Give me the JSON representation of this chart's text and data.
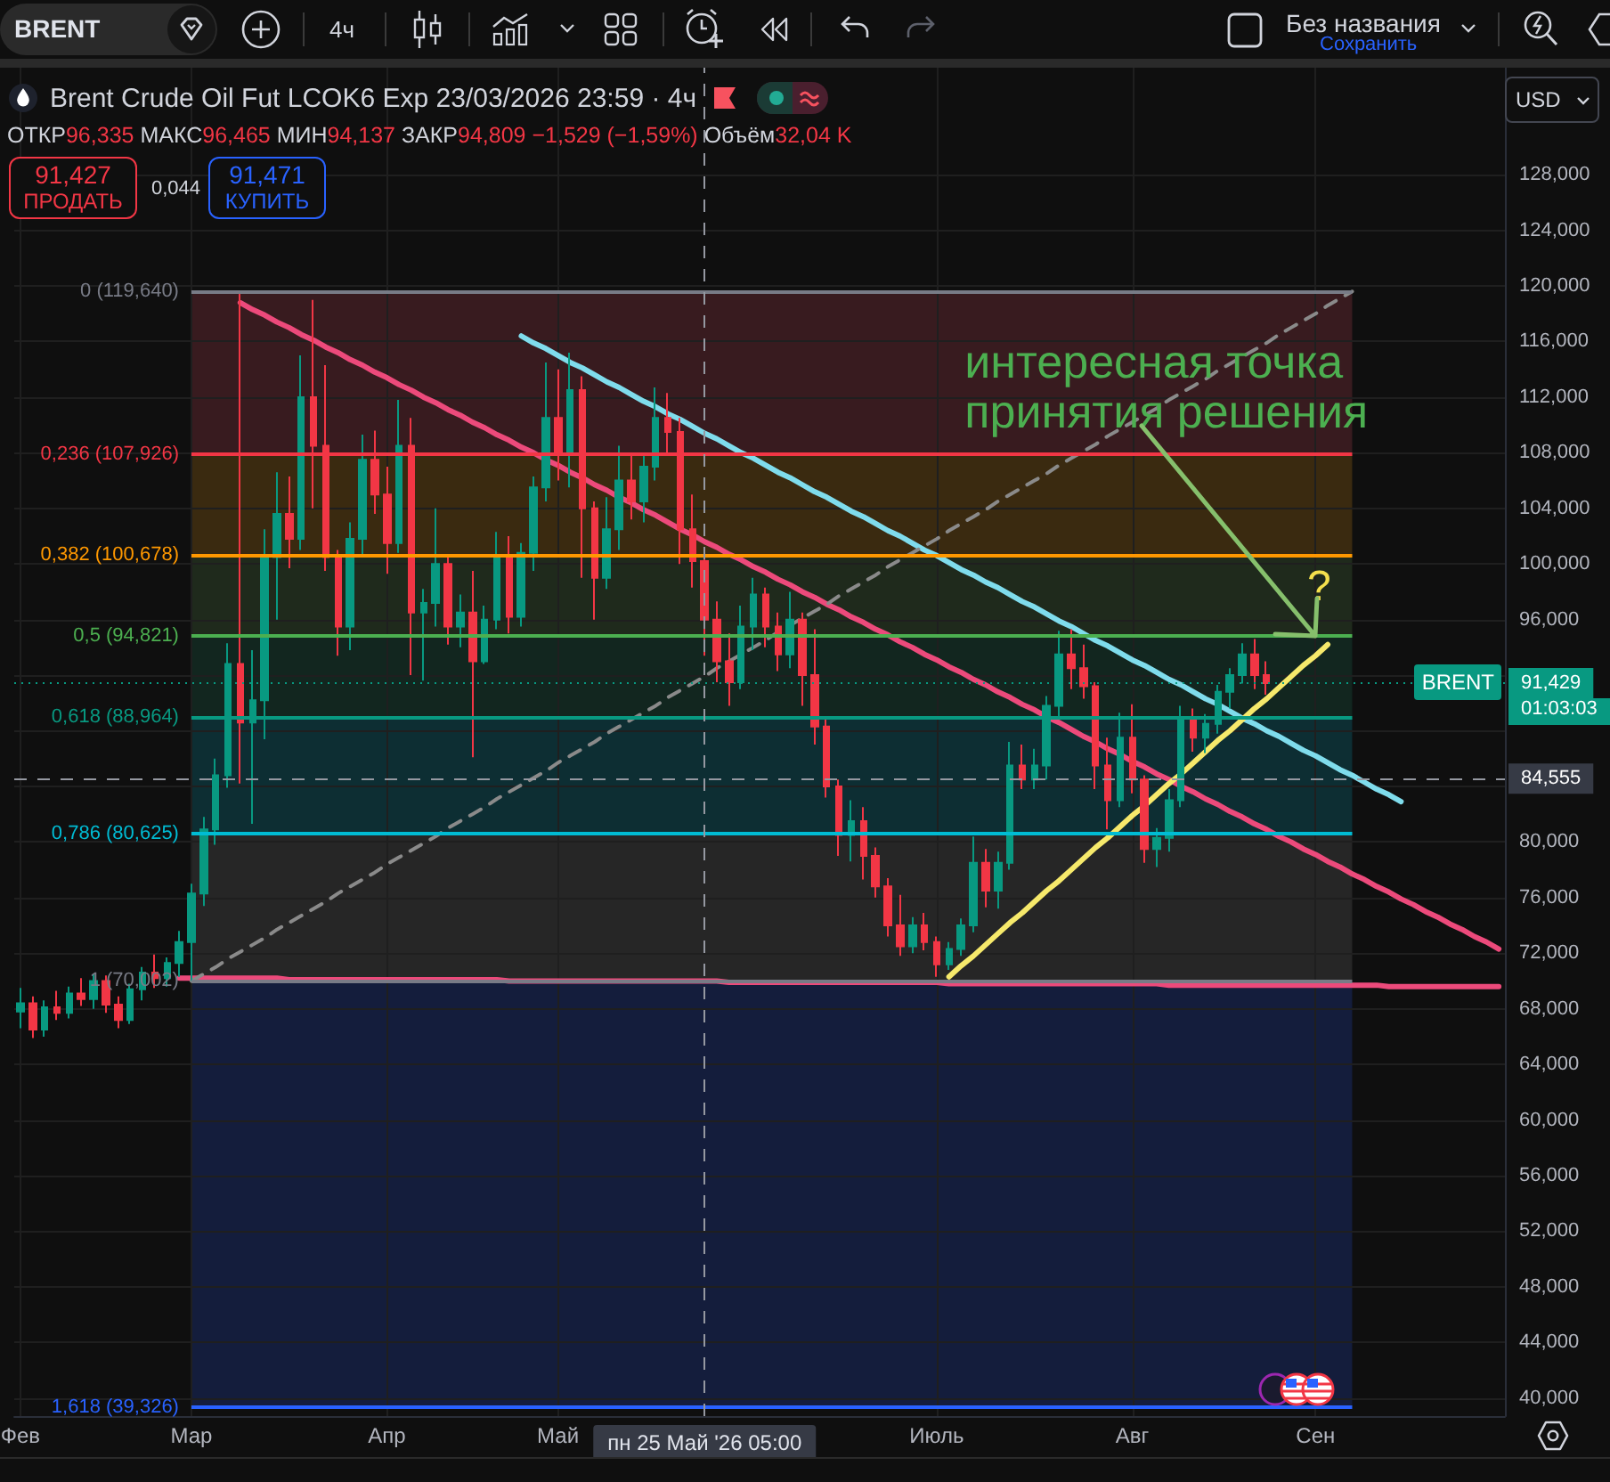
{
  "chart_data": {
    "type": "candlestick",
    "title": "Brent Crude Oil Fut LCOK6 Exp 23/03/2026 23:59 · 4ч",
    "subtitle": "ОТКР96,335 МАКС96,465 МИН94,137 ЗАКР94,809 −1,529 (−1,59%) Объём32,04 K",
    "categories": [
      "Фев",
      null,
      null,
      null,
      null,
      null,
      null,
      null,
      null,
      null,
      null,
      null,
      null,
      null,
      "Мар",
      null,
      null,
      null,
      null,
      null,
      null,
      null,
      null,
      null,
      null,
      null,
      null,
      null,
      null,
      null,
      "Апр",
      null,
      null,
      null,
      null,
      null,
      null,
      null,
      null,
      null,
      null,
      null,
      null,
      null,
      "Май",
      null,
      null,
      null,
      null,
      null,
      null,
      null,
      null,
      null,
      null,
      null,
      "пн 25 Май '26 05:00",
      null,
      null,
      null,
      null,
      null,
      null,
      null,
      null,
      null,
      null,
      null,
      null,
      null,
      null,
      null,
      null,
      null,
      null,
      "Июль",
      null,
      null,
      null,
      null,
      null,
      null,
      null,
      null,
      null,
      null,
      null,
      null,
      null,
      null,
      null,
      "Авг",
      null,
      null,
      null,
      null,
      null,
      null,
      null,
      null,
      null,
      null,
      null,
      null,
      null,
      null,
      "Сен",
      null,
      null,
      null,
      null,
      null,
      null,
      null,
      null,
      null,
      null,
      null,
      null,
      null,
      null,
      null
    ],
    "ohlc": [
      [
        67.8,
        69.5,
        66.6,
        68.4
      ],
      [
        68.4,
        68.9,
        65.9,
        66.5
      ],
      [
        66.5,
        68.6,
        66.0,
        68.1
      ],
      [
        68.1,
        69.3,
        67.2,
        67.7
      ],
      [
        67.7,
        69.6,
        67.3,
        69.1
      ],
      [
        69.1,
        70.2,
        68.2,
        68.7
      ],
      [
        68.7,
        70.5,
        68.0,
        70.0
      ],
      [
        70.0,
        70.4,
        67.7,
        68.3
      ],
      [
        68.3,
        68.9,
        66.6,
        67.2
      ],
      [
        67.2,
        69.8,
        66.9,
        69.4
      ],
      [
        69.4,
        71.0,
        68.6,
        70.6
      ],
      [
        70.6,
        71.9,
        69.5,
        70.2
      ],
      [
        70.2,
        71.7,
        69.6,
        71.3
      ],
      [
        71.3,
        73.6,
        70.3,
        72.8
      ],
      [
        72.8,
        77.0,
        70.0,
        76.3
      ],
      [
        76.3,
        81.8,
        75.4,
        80.9
      ],
      [
        80.9,
        86.0,
        79.8,
        84.8
      ],
      [
        84.8,
        94.3,
        83.9,
        92.8
      ],
      [
        92.8,
        119.6,
        84.2,
        88.6
      ],
      [
        88.6,
        93.8,
        81.3,
        90.2
      ],
      [
        90.2,
        102.5,
        87.4,
        100.5
      ],
      [
        100.5,
        106.6,
        96.0,
        103.6
      ],
      [
        103.6,
        106.3,
        99.7,
        101.8
      ],
      [
        101.8,
        115.0,
        101.0,
        112.0
      ],
      [
        112.0,
        119.0,
        104.0,
        108.5
      ],
      [
        108.5,
        114.3,
        99.5,
        100.5
      ],
      [
        100.5,
        101.0,
        93.4,
        95.5
      ],
      [
        95.5,
        103.0,
        93.8,
        101.8
      ],
      [
        101.8,
        109.3,
        100.5,
        107.5
      ],
      [
        107.5,
        109.6,
        103.6,
        105.0
      ],
      [
        105.0,
        107.0,
        99.3,
        101.5
      ],
      [
        101.5,
        111.8,
        100.8,
        108.5
      ],
      [
        108.5,
        110.5,
        92.0,
        96.5
      ],
      [
        96.5,
        98.2,
        91.6,
        97.2
      ],
      [
        97.2,
        104.0,
        95.5,
        100.0
      ],
      [
        100.0,
        100.5,
        94.2,
        95.5
      ],
      [
        95.5,
        97.8,
        94.0,
        96.5
      ],
      [
        96.5,
        99.5,
        86.1,
        93.0
      ],
      [
        93.0,
        97.0,
        92.8,
        96.0
      ],
      [
        96.0,
        102.3,
        95.3,
        100.5
      ],
      [
        100.5,
        102.0,
        95.0,
        96.2
      ],
      [
        96.2,
        101.5,
        95.5,
        100.8
      ],
      [
        100.8,
        106.3,
        99.5,
        105.5
      ],
      [
        105.5,
        114.5,
        104.5,
        110.5
      ],
      [
        110.5,
        114.0,
        106.0,
        108.0
      ],
      [
        108.0,
        115.2,
        105.5,
        112.5
      ],
      [
        112.5,
        113.5,
        99.0,
        104.0
      ],
      [
        104.0,
        104.5,
        96.0,
        99.0
      ],
      [
        99.0,
        104.8,
        98.2,
        102.5
      ],
      [
        102.5,
        108.5,
        101.0,
        106.0
      ],
      [
        106.0,
        108.0,
        103.2,
        104.5
      ],
      [
        104.5,
        107.8,
        103.0,
        107.0
      ],
      [
        107.0,
        112.7,
        106.0,
        110.5
      ],
      [
        110.5,
        112.3,
        108.0,
        109.5
      ],
      [
        109.5,
        110.5,
        100.0,
        102.5
      ],
      [
        102.5,
        105.0,
        98.3,
        100.2
      ],
      [
        100.2,
        100.5,
        93.4,
        96.0
      ],
      [
        96.0,
        97.3,
        91.5,
        93.0
      ],
      [
        93.0,
        95.0,
        89.8,
        91.5
      ],
      [
        91.5,
        97.0,
        91.0,
        95.5
      ],
      [
        95.5,
        99.0,
        93.8,
        97.8
      ],
      [
        97.8,
        98.3,
        94.0,
        95.5
      ],
      [
        95.5,
        96.5,
        92.3,
        93.5
      ],
      [
        93.5,
        98.0,
        92.5,
        96.0
      ],
      [
        96.0,
        96.5,
        89.8,
        92.0
      ],
      [
        92.0,
        95.3,
        87.0,
        88.3
      ],
      [
        88.3,
        88.8,
        83.2,
        84.0
      ],
      [
        84.0,
        84.5,
        79.0,
        80.5
      ],
      [
        80.5,
        83.0,
        78.6,
        81.5
      ],
      [
        81.5,
        82.5,
        77.3,
        79.0
      ],
      [
        79.0,
        79.6,
        76.0,
        76.8
      ],
      [
        76.8,
        77.4,
        73.2,
        74.0
      ],
      [
        74.0,
        76.2,
        71.8,
        72.5
      ],
      [
        72.5,
        74.6,
        72.0,
        74.0
      ],
      [
        74.0,
        74.9,
        72.2,
        72.8
      ],
      [
        72.8,
        73.2,
        70.3,
        71.2
      ],
      [
        71.2,
        72.8,
        70.8,
        72.3
      ],
      [
        72.3,
        74.5,
        71.8,
        74.0
      ],
      [
        74.0,
        80.4,
        73.5,
        78.5
      ],
      [
        78.5,
        79.5,
        75.3,
        76.5
      ],
      [
        76.5,
        79.3,
        75.2,
        78.5
      ],
      [
        78.5,
        87.2,
        78.0,
        85.5
      ],
      [
        85.5,
        87.0,
        83.8,
        84.5
      ],
      [
        84.5,
        86.7,
        83.8,
        85.5
      ],
      [
        85.5,
        90.5,
        84.5,
        89.8
      ],
      [
        89.8,
        95.2,
        89.0,
        93.5
      ],
      [
        93.5,
        95.3,
        91.0,
        92.5
      ],
      [
        92.5,
        94.2,
        90.3,
        91.2
      ],
      [
        91.2,
        91.5,
        83.8,
        85.5
      ],
      [
        85.5,
        87.5,
        80.9,
        83.0
      ],
      [
        83.0,
        89.3,
        82.5,
        87.5
      ],
      [
        87.5,
        89.9,
        83.5,
        84.5
      ],
      [
        84.5,
        84.8,
        78.5,
        79.5
      ],
      [
        79.5,
        81.0,
        78.2,
        80.3
      ],
      [
        80.3,
        83.8,
        79.3,
        83.0
      ],
      [
        83.0,
        89.8,
        82.5,
        88.8
      ],
      [
        88.8,
        89.6,
        86.5,
        87.5
      ],
      [
        87.5,
        89.2,
        86.4,
        88.5
      ],
      [
        88.5,
        91.3,
        87.8,
        90.8
      ],
      [
        90.8,
        92.5,
        89.6,
        92.0
      ],
      [
        92.0,
        94.3,
        91.4,
        93.5
      ],
      [
        93.5,
        94.6,
        91.0,
        92.0
      ],
      [
        92.0,
        93.0,
        90.6,
        91.429
      ],
      null,
      null,
      null,
      null,
      null,
      null,
      null,
      null,
      null,
      null,
      null,
      null,
      null,
      null,
      null,
      null,
      null,
      null,
      null
    ],
    "colors": [
      "#089981",
      "#f23645",
      "#089981",
      "#f23645",
      "#089981",
      "#f23645",
      "#089981",
      "#f23645",
      "#f23645",
      "#089981",
      "#089981",
      "#f23645",
      "#089981",
      "#089981",
      "#089981",
      "#089981",
      "#089981",
      "#089981",
      "#f23645",
      "#089981",
      "#089981",
      "#089981",
      "#f23645",
      "#089981",
      "#f23645",
      "#f23645",
      "#f23645",
      "#089981",
      "#089981",
      "#f23645",
      "#f23645",
      "#089981",
      "#f23645",
      "#089981",
      "#089981",
      "#f23645",
      "#089981",
      "#f23645",
      "#089981",
      "#089981",
      "#f23645",
      "#089981",
      "#089981",
      "#089981",
      "#f23645",
      "#089981",
      "#f23645",
      "#f23645",
      "#089981",
      "#089981",
      "#f23645",
      "#089981",
      "#089981",
      "#f23645",
      "#f23645",
      "#f23645",
      "#f23645",
      "#f23645",
      "#f23645",
      "#089981",
      "#089981",
      "#f23645",
      "#f23645",
      "#089981",
      "#f23645",
      "#f23645",
      "#f23645",
      "#f23645",
      "#089981",
      "#f23645",
      "#f23645",
      "#f23645",
      "#f23645",
      "#089981",
      "#f23645",
      "#f23645",
      "#089981",
      "#089981",
      "#089981",
      "#f23645",
      "#089981",
      "#089981",
      "#f23645",
      "#089981",
      "#089981",
      "#089981",
      "#f23645",
      "#f23645",
      "#f23645",
      "#f23645",
      "#089981",
      "#f23645",
      "#f23645",
      "#089981",
      "#089981",
      "#089981",
      "#f23645",
      "#089981",
      "#089981",
      "#089981",
      "#089981",
      "#f23645",
      "#f23645",
      null,
      null,
      null,
      null,
      null,
      null,
      null,
      null,
      null,
      null,
      null,
      null,
      null,
      null,
      null,
      null,
      null,
      null,
      null
    ],
    "series": [
      {
        "type": "line",
        "color": "#ec4a7b",
        "values": [
          null,
          null,
          null,
          null,
          null,
          null,
          null,
          null,
          null,
          null,
          null,
          null,
          null,
          null,
          null,
          null,
          null,
          null,
          118.8,
          118.3,
          117.9,
          117.4,
          117.0,
          116.5,
          116.1,
          115.6,
          115.2,
          114.7,
          114.3,
          113.8,
          113.4,
          112.9,
          112.5,
          112.0,
          111.6,
          111.1,
          110.7,
          110.2,
          109.8,
          109.3,
          108.9,
          108.4,
          108.0,
          107.5,
          107.1,
          106.6,
          106.2,
          105.7,
          105.3,
          104.8,
          104.4,
          103.9,
          103.5,
          103.0,
          102.5,
          102.1,
          101.6,
          101.2,
          100.7,
          100.3,
          99.8,
          99.4,
          98.9,
          98.5,
          98.0,
          97.6,
          97.1,
          96.7,
          96.2,
          95.8,
          95.3,
          94.9,
          94.4,
          94.0,
          93.5,
          93.1,
          92.6,
          92.2,
          91.7,
          91.3,
          90.8,
          90.4,
          89.9,
          89.5,
          89.0,
          88.6,
          88.1,
          87.6,
          87.2,
          86.7,
          86.3,
          85.8,
          85.4,
          84.9,
          84.5,
          84.0,
          83.6,
          83.1,
          82.7,
          82.2,
          81.8,
          81.3,
          80.9,
          80.4,
          80.0,
          79.5,
          79.1,
          78.6,
          78.2,
          77.7,
          77.3,
          76.8,
          76.4,
          75.9,
          75.5,
          75.0,
          74.6,
          74.1,
          73.7,
          73.2,
          72.8,
          72.3
        ]
      },
      {
        "type": "line",
        "color": "#ec4a7b",
        "values": [
          null,
          null,
          null,
          null,
          null,
          null,
          null,
          null,
          null,
          null,
          null,
          null,
          null,
          70.2,
          70.2,
          70.2,
          70.2,
          70.2,
          70.2,
          70.2,
          70.2,
          70.2,
          70.1,
          70.1,
          70.1,
          70.1,
          70.1,
          70.1,
          70.1,
          70.1,
          70.1,
          70.1,
          70.1,
          70.1,
          70.1,
          70.1,
          70.1,
          70.1,
          70.1,
          70.1,
          70.0,
          70.0,
          70.0,
          70.0,
          70.0,
          70.0,
          70.0,
          70.0,
          70.0,
          70.0,
          70.0,
          70.0,
          70.0,
          70.0,
          70.0,
          70.0,
          70.0,
          70.0,
          69.9,
          69.9,
          69.9,
          69.9,
          69.9,
          69.9,
          69.9,
          69.9,
          69.9,
          69.9,
          69.9,
          69.9,
          69.9,
          69.9,
          69.9,
          69.9,
          69.9,
          69.9,
          69.8,
          69.8,
          69.8,
          69.8,
          69.8,
          69.8,
          69.8,
          69.8,
          69.8,
          69.8,
          69.8,
          69.8,
          69.8,
          69.8,
          69.8,
          69.8,
          69.8,
          69.8,
          69.7,
          69.7,
          69.7,
          69.7,
          69.7,
          69.7,
          69.7,
          69.7,
          69.7,
          69.7,
          69.7,
          69.7,
          69.7,
          69.7,
          69.7,
          69.7,
          69.7,
          69.7,
          69.6,
          69.6,
          69.6,
          69.6,
          69.6,
          69.6,
          69.6,
          69.6,
          69.6,
          69.6
        ]
      },
      {
        "type": "line",
        "color": "#7fdcec",
        "values": [
          null,
          null,
          null,
          null,
          null,
          null,
          null,
          null,
          null,
          null,
          null,
          null,
          null,
          null,
          null,
          null,
          null,
          null,
          null,
          null,
          null,
          null,
          null,
          null,
          null,
          null,
          null,
          null,
          null,
          null,
          null,
          null,
          null,
          null,
          null,
          null,
          null,
          null,
          null,
          null,
          null,
          116.4,
          115.9,
          115.5,
          115.0,
          114.5,
          114.1,
          113.6,
          113.1,
          112.7,
          112.2,
          111.7,
          111.3,
          110.8,
          110.4,
          109.9,
          109.4,
          109.0,
          108.5,
          108.0,
          107.6,
          107.1,
          106.6,
          106.2,
          105.7,
          105.2,
          104.8,
          104.3,
          103.8,
          103.4,
          102.9,
          102.4,
          102.0,
          101.5,
          101.0,
          100.6,
          100.1,
          99.6,
          99.2,
          98.7,
          98.3,
          97.8,
          97.3,
          96.9,
          96.4,
          95.9,
          95.5,
          95.0,
          94.5,
          94.1,
          93.6,
          93.1,
          92.7,
          92.2,
          91.7,
          91.3,
          90.8,
          90.3,
          89.9,
          89.4,
          88.9,
          88.5,
          88.0,
          87.6,
          87.1,
          86.6,
          86.2,
          85.7,
          85.2,
          84.8,
          84.3,
          83.8,
          83.4,
          82.9,
          null,
          null,
          null,
          null,
          null,
          null,
          null,
          null
        ]
      },
      {
        "type": "line",
        "color": "#f6e96b",
        "values": [
          null,
          null,
          null,
          null,
          null,
          null,
          null,
          null,
          null,
          null,
          null,
          null,
          null,
          null,
          null,
          null,
          null,
          null,
          null,
          null,
          null,
          null,
          null,
          null,
          null,
          null,
          null,
          null,
          null,
          null,
          null,
          null,
          null,
          null,
          null,
          null,
          null,
          null,
          null,
          null,
          null,
          null,
          null,
          null,
          null,
          null,
          null,
          null,
          null,
          null,
          null,
          null,
          null,
          null,
          null,
          null,
          null,
          null,
          null,
          null,
          null,
          null,
          null,
          null,
          null,
          null,
          null,
          null,
          null,
          null,
          null,
          null,
          null,
          null,
          null,
          null,
          70.3,
          71.1,
          71.8,
          72.6,
          73.4,
          74.2,
          74.9,
          75.7,
          76.5,
          77.2,
          78.0,
          78.8,
          79.6,
          80.3,
          81.1,
          81.9,
          82.6,
          83.4,
          84.2,
          84.9,
          85.7,
          86.5,
          87.3,
          88.0,
          88.8,
          89.6,
          90.3,
          91.1,
          91.9,
          92.7,
          93.4,
          94.2,
          null,
          null,
          null,
          null,
          null,
          null,
          null,
          null,
          null,
          null,
          null,
          null,
          null,
          null
        ]
      },
      {
        "type": "line",
        "color": "#8a8a8a",
        "line_style": "dashed",
        "values": [
          null,
          null,
          null,
          null,
          null,
          null,
          null,
          null,
          null,
          null,
          null,
          null,
          null,
          null,
          70.0,
          70.5,
          71.0,
          71.6,
          72.1,
          72.6,
          73.1,
          73.7,
          74.2,
          74.7,
          75.2,
          75.7,
          76.3,
          76.8,
          77.3,
          77.8,
          78.4,
          78.9,
          79.4,
          79.9,
          80.4,
          81.0,
          81.5,
          82.0,
          82.5,
          83.1,
          83.6,
          84.1,
          84.6,
          85.1,
          85.7,
          86.2,
          86.7,
          87.2,
          87.8,
          88.3,
          88.8,
          89.3,
          89.8,
          90.4,
          90.9,
          91.4,
          91.9,
          92.5,
          93.0,
          93.5,
          94.0,
          94.5,
          95.1,
          95.6,
          96.1,
          96.6,
          97.1,
          97.7,
          98.2,
          98.7,
          99.2,
          99.8,
          100.3,
          100.8,
          101.3,
          101.8,
          102.4,
          102.9,
          103.4,
          103.9,
          104.5,
          105.0,
          105.5,
          106.0,
          106.5,
          107.1,
          107.6,
          108.1,
          108.6,
          109.2,
          109.7,
          110.2,
          110.7,
          111.2,
          111.8,
          112.3,
          112.8,
          113.3,
          113.9,
          114.4,
          114.9,
          115.4,
          115.9,
          116.5,
          117.0,
          117.5,
          118.0,
          118.6,
          119.1,
          119.6,
          null,
          null,
          null,
          null,
          null,
          null,
          null,
          null,
          null,
          null,
          null,
          null
        ]
      }
    ],
    "ylim": [
      38.7,
      135.7
    ],
    "yticks": [
      {
        "value": 40,
        "label": "40,000"
      },
      {
        "value": 44,
        "label": "44,000"
      },
      {
        "value": 48,
        "label": "48,000"
      },
      {
        "value": 52,
        "label": "52,000"
      },
      {
        "value": 56,
        "label": "56,000"
      },
      {
        "value": 60,
        "label": "60,000"
      },
      {
        "value": 64,
        "label": "64,000"
      },
      {
        "value": 68,
        "label": "68,000"
      },
      {
        "value": 72,
        "label": "72,000"
      },
      {
        "value": 76,
        "label": "76,000"
      },
      {
        "value": 80,
        "label": "80,000"
      },
      {
        "value": 84,
        "label": null
      },
      {
        "value": 88,
        "label": null
      },
      {
        "value": 92,
        "label": null
      },
      {
        "value": 96,
        "label": "96,000"
      },
      {
        "value": 100,
        "label": "100,000"
      },
      {
        "value": 104,
        "label": "104,000"
      },
      {
        "value": 108,
        "label": "108,000"
      },
      {
        "value": 112,
        "label": "112,000"
      },
      {
        "value": 116,
        "label": "116,000"
      },
      {
        "value": 120,
        "label": "120,000"
      },
      {
        "value": 124,
        "label": "124,000"
      },
      {
        "value": 128,
        "label": "128,000"
      }
    ],
    "ref_lines": [
      {
        "axis": "y",
        "value": 119.64,
        "label": "0 (119,640)",
        "color": "#787b86",
        "line_style": "solid"
      },
      {
        "axis": "y",
        "value": 107.926,
        "label": "0,236 (107,926)",
        "color": "#f23645",
        "line_style": "solid"
      },
      {
        "axis": "y",
        "value": 100.678,
        "label": "0,382 (100,678)",
        "color": "#ff9800",
        "line_style": "solid"
      },
      {
        "axis": "y",
        "value": 94.821,
        "label": "0,5 (94,821)",
        "color": "#4caf50",
        "line_style": "solid"
      },
      {
        "axis": "y",
        "value": 88.964,
        "label": "0,618 (88,964)",
        "color": "#089981",
        "line_style": "solid"
      },
      {
        "axis": "y",
        "value": 80.625,
        "label": "0,786 (80,625)",
        "color": "#00bcd4",
        "line_style": "solid"
      },
      {
        "axis": "y",
        "value": 70.002,
        "label": "1 (70,002)",
        "color": "#787b86",
        "line_style": "solid"
      },
      {
        "axis": "y",
        "value": 39.326,
        "label": "1,618 (39,326)",
        "color": "#2962ff",
        "line_style": "solid"
      },
      {
        "axis": "y",
        "value": 91.429,
        "label": "91,429",
        "color": "#089981",
        "line_style": "dotted"
      },
      {
        "axis": "y",
        "value": 84.555,
        "label": "84,555",
        "color": "#9598a1",
        "line_style": "dashed"
      },
      {
        "axis": "x",
        "value": "пн 25 Май '26 05:00",
        "color": "#9598a1",
        "line_style": "dashed"
      }
    ],
    "bands": [
      {
        "axis": "y",
        "from": 107.926,
        "to": 119.64,
        "color": "#381b1f"
      },
      {
        "axis": "y",
        "from": 100.678,
        "to": 107.926,
        "color": "#3a2a10"
      },
      {
        "axis": "y",
        "from": 94.821,
        "to": 100.678,
        "color": "#1f2a1c"
      },
      {
        "axis": "y",
        "from": 88.964,
        "to": 94.821,
        "color": "#12261f"
      },
      {
        "axis": "y",
        "from": 80.625,
        "to": 88.964,
        "color": "#0d2e33"
      },
      {
        "axis": "y",
        "from": 70.002,
        "to": 80.625,
        "color": "#262626"
      },
      {
        "axis": "y",
        "from": 39.326,
        "to": 70.002,
        "color": "#141d3c"
      }
    ],
    "annotations": [
      "BRENT",
      "4ч",
      "Без названия",
      "Сохранить",
      "91,427",
      "ПРОДАТЬ",
      "0,044",
      "91,471",
      "КУПИТЬ",
      "USD",
      "BRENT",
      "01:03:03",
      {
        "text": "интересная точка принятия решения",
        "x": "Сен",
        "y": 94.8
      },
      "?"
    ],
    "grid": true,
    "marker": "none",
    "line_style": "solid"
  }
}
